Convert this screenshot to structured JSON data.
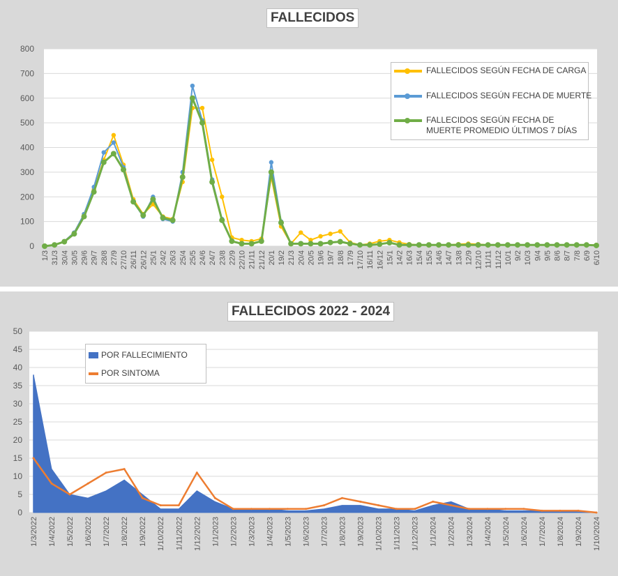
{
  "chart_data": [
    {
      "type": "line",
      "title": "FALLECIDOS",
      "ylim": [
        0,
        800
      ],
      "yticks": [
        "0",
        "100",
        "200",
        "300",
        "400",
        "500",
        "600",
        "700",
        "800"
      ],
      "categories": [
        "1/3",
        "31/3",
        "30/4",
        "30/5",
        "29/6",
        "29/7",
        "28/8",
        "27/9",
        "27/10",
        "26/11",
        "26/12",
        "25/1",
        "24/2",
        "26/3",
        "25/4",
        "25/5",
        "24/6",
        "24/7",
        "23/8",
        "22/9",
        "22/10",
        "21/11",
        "21/12",
        "20/1",
        "19/2",
        "21/3",
        "20/4",
        "20/5",
        "19/6",
        "19/7",
        "18/8",
        "17/9",
        "17/10",
        "16/11",
        "16/12",
        "15/1",
        "14/2",
        "16/3",
        "15/4",
        "15/5",
        "14/6",
        "14/7",
        "13/8",
        "12/9",
        "12/10",
        "11/11",
        "11/12",
        "10/1",
        "9/2",
        "10/3",
        "9/4",
        "9/5",
        "8/6",
        "8/7",
        "7/8",
        "6/9",
        "6/10"
      ],
      "grid": true,
      "legend_position": "top-right",
      "series": [
        {
          "name": "FALLECIDOS SEGÚN FECHA DE CARGA",
          "color": "#ffc000",
          "marker": "circle",
          "values": [
            0,
            5,
            20,
            55,
            130,
            230,
            350,
            450,
            330,
            190,
            130,
            170,
            120,
            110,
            260,
            560,
            560,
            350,
            200,
            35,
            25,
            20,
            30,
            280,
            80,
            10,
            55,
            25,
            40,
            50,
            60,
            15,
            5,
            10,
            20,
            25,
            15,
            8,
            5,
            5,
            5,
            5,
            8,
            10,
            8,
            5,
            5,
            5,
            5,
            5,
            5,
            5,
            5,
            5,
            5,
            5,
            5
          ]
        },
        {
          "name": "FALLECIDOS SEGÚN FECHA DE MUERTE",
          "color": "#5b9bd5",
          "marker": "circle",
          "values": [
            0,
            5,
            20,
            55,
            130,
            240,
            380,
            420,
            320,
            180,
            120,
            200,
            110,
            100,
            300,
            650,
            510,
            270,
            110,
            20,
            10,
            10,
            20,
            340,
            100,
            10,
            10,
            10,
            10,
            15,
            20,
            10,
            5,
            5,
            8,
            15,
            5,
            5,
            5,
            5,
            5,
            5,
            5,
            5,
            5,
            5,
            5,
            5,
            5,
            5,
            5,
            5,
            5,
            5,
            5,
            5,
            3
          ]
        },
        {
          "name": "FALLECIDOS SEGÚN FECHA DE MUERTE PROMEDIO ÚLTIMOS 7 DÍAS",
          "color": "#70ad47",
          "marker": "circle",
          "values": [
            0,
            5,
            18,
            50,
            120,
            220,
            340,
            375,
            310,
            180,
            125,
            190,
            115,
            105,
            280,
            600,
            500,
            260,
            105,
            20,
            10,
            10,
            20,
            300,
            95,
            10,
            10,
            10,
            10,
            15,
            18,
            10,
            5,
            5,
            8,
            14,
            5,
            5,
            5,
            5,
            5,
            5,
            5,
            5,
            5,
            5,
            5,
            5,
            5,
            5,
            5,
            5,
            5,
            5,
            5,
            5,
            3
          ]
        }
      ]
    },
    {
      "type": "area",
      "title": "FALLECIDOS 2022 - 2024",
      "ylim": [
        0,
        50
      ],
      "yticks": [
        "0",
        "5",
        "10",
        "15",
        "20",
        "25",
        "30",
        "35",
        "40",
        "45",
        "50"
      ],
      "categories": [
        "1/3/2022",
        "1/4/2022",
        "1/5/2022",
        "1/6/2022",
        "1/7/2022",
        "1/8/2022",
        "1/9/2022",
        "1/10/2022",
        "1/11/2022",
        "1/12/2022",
        "1/1/2023",
        "1/2/2023",
        "1/3/2023",
        "1/4/2023",
        "1/5/2023",
        "1/6/2023",
        "1/7/2023",
        "1/8/2023",
        "1/9/2023",
        "1/10/2023",
        "1/11/2023",
        "1/12/2023",
        "1/1/2024",
        "1/2/2024",
        "1/3/2024",
        "1/4/2024",
        "1/5/2024",
        "1/6/2024",
        "1/7/2024",
        "1/8/2024",
        "1/9/2024",
        "1/10/2024"
      ],
      "grid": true,
      "legend_position": "top-left",
      "series": [
        {
          "name": "POR FALLECIMIENTO",
          "color": "#4472c4",
          "values": [
            38,
            12,
            5,
            4,
            6,
            9,
            5,
            1,
            1,
            6,
            3,
            1,
            1,
            1,
            0.5,
            0.5,
            1,
            2,
            2,
            1,
            1,
            0.5,
            2,
            3,
            1,
            1,
            0.5,
            0.5,
            0.5,
            0.5,
            0.5,
            0
          ]
        },
        {
          "name": "POR SINTOMA",
          "color": "#ed7d31",
          "values": [
            15,
            8,
            5,
            8,
            11,
            12,
            4,
            2,
            2,
            11,
            4,
            1,
            1,
            1,
            1,
            1,
            2,
            4,
            3,
            2,
            1,
            1,
            3,
            2,
            1,
            1,
            1,
            1,
            0.5,
            0.5,
            0.5,
            0
          ]
        }
      ]
    }
  ]
}
